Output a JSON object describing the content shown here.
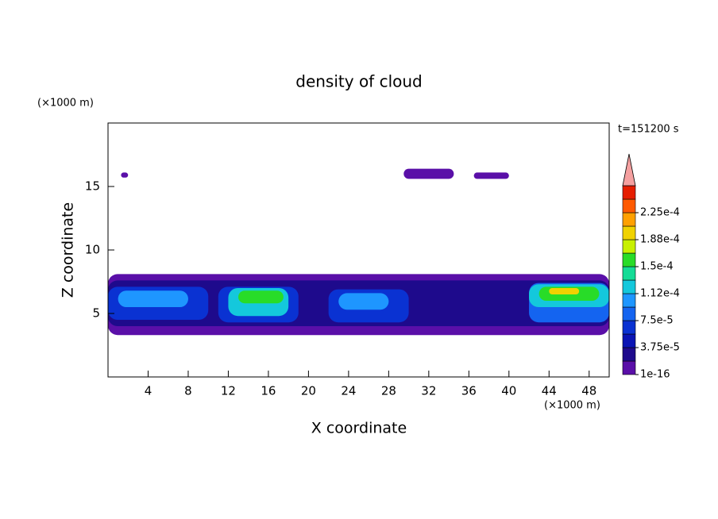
{
  "chart_data": {
    "type": "contour",
    "title": "density of cloud",
    "x_label": "X coordinate",
    "y_label": "Z coordinate",
    "x_unit": "(×1000 m)",
    "y_unit": "(×1000 m)",
    "time_label": "t=151200 s",
    "xlim": [
      0,
      50
    ],
    "ylim": [
      0,
      20
    ],
    "xticks": [
      4,
      8,
      12,
      16,
      20,
      24,
      28,
      32,
      36,
      40,
      44,
      48
    ],
    "yticks": [
      5,
      10,
      15
    ],
    "colorbar": {
      "bounds": [
        1e-16,
        1.875e-05,
        3.75e-05,
        5.625e-05,
        7.5e-05,
        9.375e-05,
        0.0001125,
        0.00013125,
        0.00015,
        0.00016875,
        0.0001875,
        0.00020625,
        0.000225,
        0.00024375
      ],
      "colors": [
        "#5a0fa8",
        "#1e0a8c",
        "#0a14b4",
        "#0a32d2",
        "#1464f0",
        "#1e96ff",
        "#14c8dc",
        "#14dc96",
        "#28dc28",
        "#c8f000",
        "#f0d200",
        "#ffa000",
        "#ff5a00",
        "#e61e00"
      ],
      "extend_color": "#f5a0a0",
      "ticks": [
        1e-16,
        {
          "value": 3.75e-05,
          "label": "3.75e-5"
        },
        {
          "value": 7.5e-05,
          "label": "7.5e-5"
        },
        {
          "value": 0.0001125,
          "label": "1.12e-4"
        },
        {
          "value": 0.00015,
          "label": "1.5e-4"
        },
        {
          "value": 0.0001875,
          "label": "1.88e-4"
        },
        {
          "value": 0.000225,
          "label": "2.25e-4"
        }
      ]
    },
    "cells": [
      {
        "x": [
          0,
          50
        ],
        "z": [
          3.3,
          8.1
        ],
        "value": 1e-16
      },
      {
        "x": [
          1.3,
          2
        ],
        "z": [
          15.7,
          16.1
        ],
        "value": 1e-16
      },
      {
        "x": [
          29.5,
          34.5
        ],
        "z": [
          15.6,
          16.4
        ],
        "value": 1e-16
      },
      {
        "x": [
          36.5,
          40
        ],
        "z": [
          15.6,
          16.1
        ],
        "value": 1e-16
      },
      {
        "x": [
          0,
          50
        ],
        "z": [
          4.0,
          7.6
        ],
        "value": 2e-05
      },
      {
        "x": [
          0,
          10
        ],
        "z": [
          4.5,
          7.1
        ],
        "value": 6e-05
      },
      {
        "x": [
          11,
          19
        ],
        "z": [
          4.3,
          7.1
        ],
        "value": 7e-05
      },
      {
        "x": [
          22,
          30
        ],
        "z": [
          4.3,
          6.9
        ],
        "value": 6e-05
      },
      {
        "x": [
          42,
          50
        ],
        "z": [
          4.3,
          7.4
        ],
        "value": 8e-05
      },
      {
        "x": [
          1,
          8
        ],
        "z": [
          5.5,
          6.8
        ],
        "value": 0.00011
      },
      {
        "x": [
          12,
          18
        ],
        "z": [
          4.8,
          7.0
        ],
        "value": 0.00012
      },
      {
        "x": [
          23,
          28
        ],
        "z": [
          5.3,
          6.6
        ],
        "value": 0.00011
      },
      {
        "x": [
          42,
          50
        ],
        "z": [
          5.5,
          7.3
        ],
        "value": 0.00013
      },
      {
        "x": [
          13,
          17.5
        ],
        "z": [
          5.8,
          6.8
        ],
        "value": 0.000155
      },
      {
        "x": [
          43,
          49
        ],
        "z": [
          6.0,
          7.1
        ],
        "value": 0.00016
      },
      {
        "x": [
          44,
          47
        ],
        "z": [
          6.5,
          7.0
        ],
        "value": 0.00019
      }
    ]
  }
}
